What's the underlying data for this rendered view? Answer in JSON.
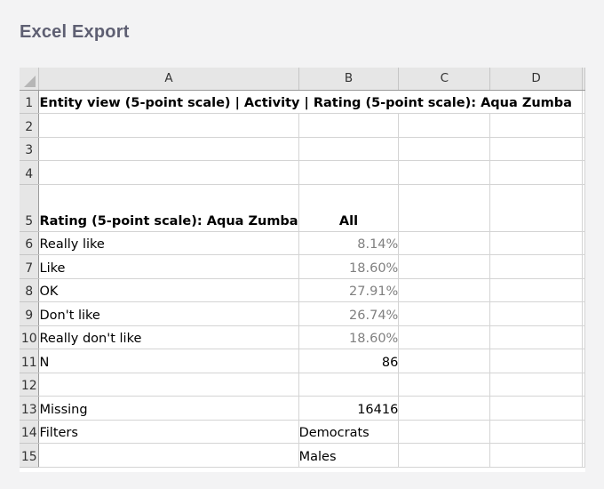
{
  "page": {
    "title": "Excel Export"
  },
  "columns": [
    "A",
    "B",
    "C",
    "D"
  ],
  "rows": [
    {
      "num": "1",
      "a": "Entity view (5-point scale) | Activity | Rating (5-point scale): Aqua Zumba",
      "b": ""
    },
    {
      "num": "2",
      "a": "",
      "b": ""
    },
    {
      "num": "3",
      "a": "",
      "b": ""
    },
    {
      "num": "4",
      "a": "",
      "b": ""
    },
    {
      "num": "5",
      "a": "Rating (5-point scale): Aqua Zumba",
      "b": "All"
    },
    {
      "num": "6",
      "a": "Really like",
      "b": "8.14%"
    },
    {
      "num": "7",
      "a": "Like",
      "b": "18.60%"
    },
    {
      "num": "8",
      "a": "OK",
      "b": "27.91%"
    },
    {
      "num": "9",
      "a": "Don't like",
      "b": "26.74%"
    },
    {
      "num": "10",
      "a": "Really don't like",
      "b": "18.60%"
    },
    {
      "num": "11",
      "a": "N",
      "b": "86"
    },
    {
      "num": "12",
      "a": "",
      "b": ""
    },
    {
      "num": "13",
      "a": "Missing",
      "b": "16416"
    },
    {
      "num": "14",
      "a": "Filters",
      "b": "Democrats"
    },
    {
      "num": "15",
      "a": "",
      "b": "Males"
    }
  ]
}
